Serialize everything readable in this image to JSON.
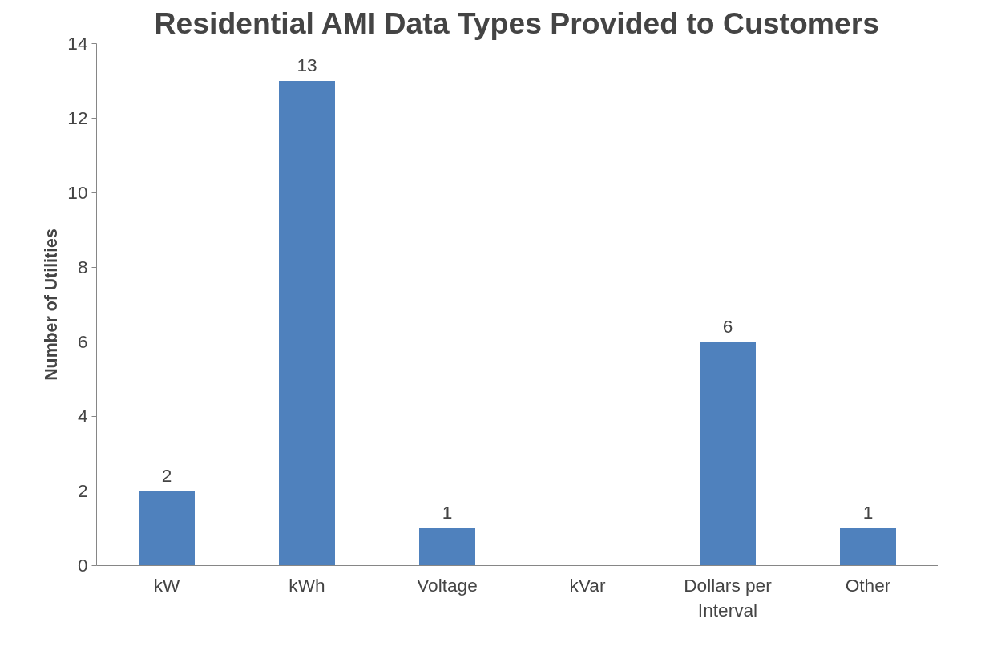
{
  "chart_data": {
    "type": "bar",
    "title": "Residential AMI Data Types Provided to Customers",
    "ylabel": "Number of Utilities",
    "categories": [
      "kW",
      "kWh",
      "Voltage",
      "kVar",
      "Dollars per Interval",
      "Other"
    ],
    "values": [
      2,
      13,
      1,
      0,
      6,
      1
    ],
    "value_labels": [
      "2",
      "13",
      "1",
      null,
      "6",
      "1"
    ],
    "color": "#4f81bd",
    "ylim": [
      0,
      14
    ],
    "yticks": [
      0,
      2,
      4,
      6,
      8,
      10,
      12,
      14
    ],
    "grid": false
  }
}
